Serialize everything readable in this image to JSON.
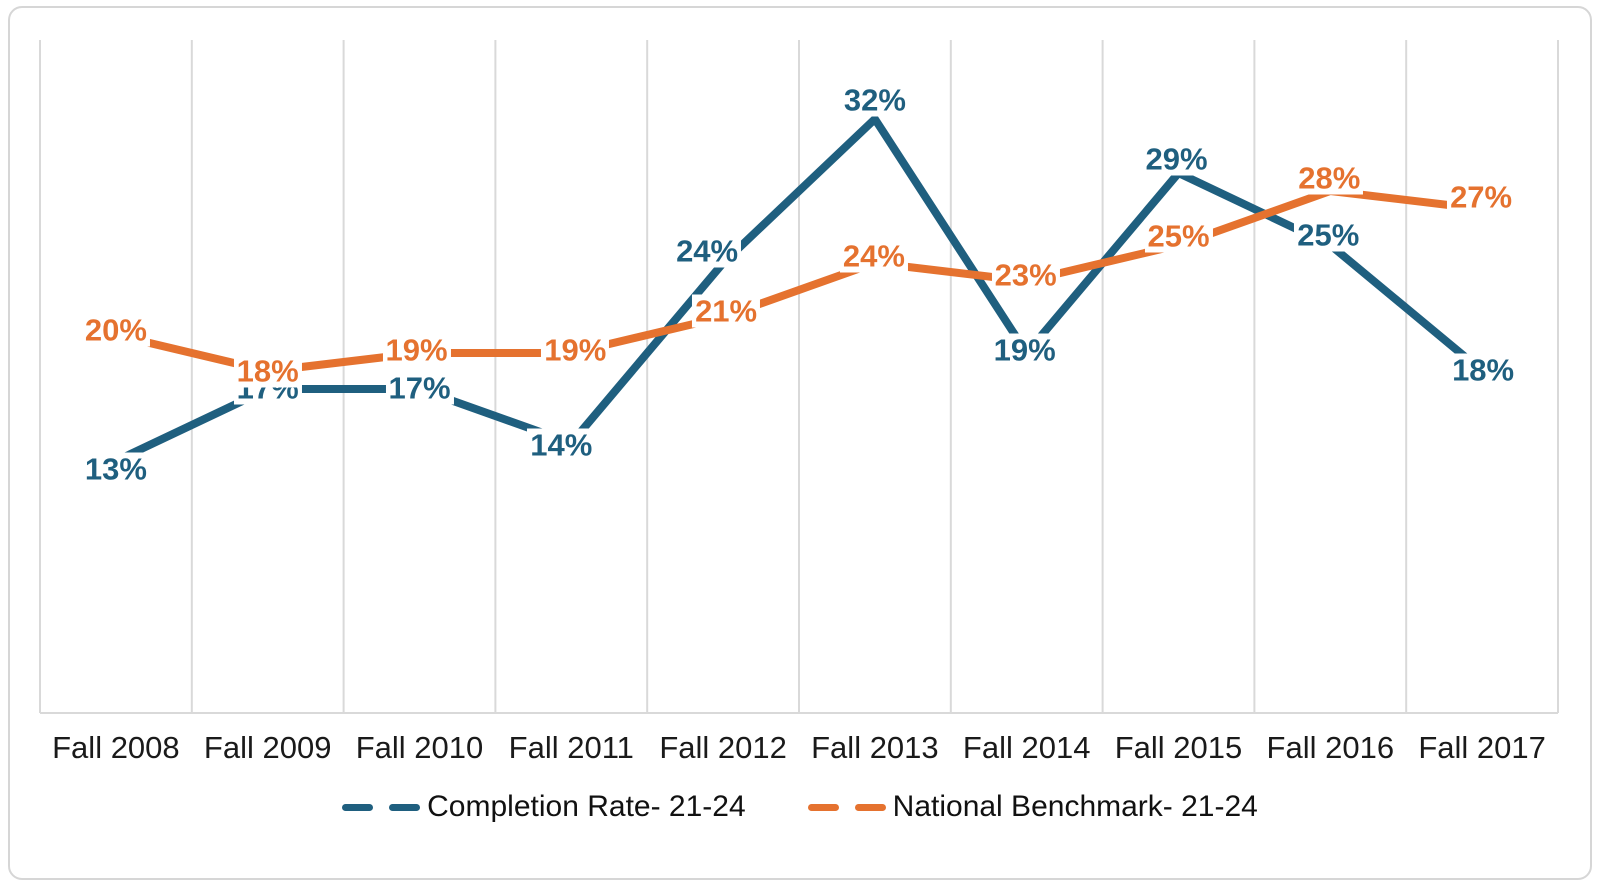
{
  "chart_data": {
    "type": "line",
    "title": "",
    "categories": [
      "Fall 2008",
      "Fall 2009",
      "Fall 2010",
      "Fall 2011",
      "Fall 2012",
      "Fall 2013",
      "Fall 2014",
      "Fall 2015",
      "Fall 2016",
      "Fall 2017"
    ],
    "series": [
      {
        "name": "Completion Rate- 21-24",
        "color": "#1F5F7F",
        "values": [
          13,
          17,
          17,
          14,
          24,
          32,
          19,
          29,
          25,
          18
        ],
        "data_labels": [
          "13%",
          "17%",
          "17%",
          "14%",
          "24%",
          "32%",
          "19%",
          "29%",
          "25%",
          "18%"
        ]
      },
      {
        "name": "National Benchmark- 21-24",
        "color": "#E5722F",
        "values": [
          20,
          18,
          19,
          19,
          21,
          24,
          23,
          25,
          28,
          27
        ],
        "data_labels": [
          "20%",
          "18%",
          "19%",
          "19%",
          "21%",
          "24%",
          "23%",
          "25%",
          "28%",
          "27%"
        ]
      }
    ],
    "value_suffix": "%",
    "xlabel": "",
    "ylabel": "",
    "ylim": [
      0,
      36
    ],
    "grid": "vertical-only",
    "gridline_color": "#D9D9D9",
    "axis_line_color": "#D9D9D9",
    "axis_text_color": "#1a1a1a",
    "legend_position": "bottom",
    "legend_style": "dashed-line-swatches"
  }
}
